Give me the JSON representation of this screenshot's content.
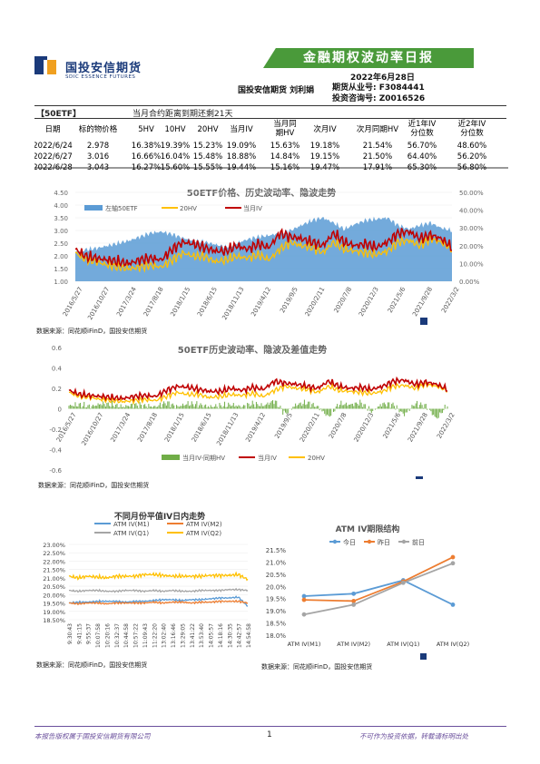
{
  "header": {
    "logo_cn": "国投安信期货",
    "logo_en": "SDIC ESSENCE FUTURES",
    "banner": "金融期权波动率日报",
    "date": "2022年6月28日",
    "author": "国投安信期货 刘利娟",
    "license": "期货从业号: F3084441",
    "consult": "投资咨询号: Z0016526"
  },
  "summary": {
    "tag": "【50ETF】",
    "note": "当月合约距离到期还剩21天",
    "headers": [
      "日期",
      "标的物价格",
      "5HV",
      "10HV",
      "20HV",
      "当月IV",
      "当月同期HV",
      "次月IV",
      "次月同期HV",
      "近1年IV分位数",
      "近2年IV分位数"
    ],
    "rows": [
      [
        "2022/6/24",
        "2.978",
        "16.38%",
        "19.39%",
        "15.23%",
        "19.09%",
        "15.63%",
        "19.18%",
        "21.54%",
        "56.70%",
        "48.60%"
      ],
      [
        "2022/6/27",
        "3.016",
        "16.66%",
        "16.04%",
        "15.48%",
        "18.88%",
        "14.84%",
        "19.15%",
        "21.50%",
        "64.40%",
        "56.20%"
      ],
      [
        "2022/6/28",
        "3.043",
        "16.27%",
        "15.60%",
        "15.55%",
        "19.44%",
        "15.16%",
        "19.47%",
        "17.91%",
        "65.30%",
        "56.80%"
      ]
    ]
  },
  "charts_text": {
    "source1": "数据来源：同花顺iFinD，国投安信期货",
    "source2": "数据来源：同花顺iFinD，国投安信期货",
    "source3": "数据来源：同花顺iFinD，国投安信期货",
    "source4": "数据来源：同花顺iFinD，国投安信期货"
  },
  "footer": {
    "left": "本报告版权属于国投安信期货有限公司",
    "page": "1",
    "right": "不可作为投资依据，转载请标明出处"
  },
  "colors": {
    "blue": "#5b9bd5",
    "red": "#c00000",
    "orange": "#ffc000",
    "green": "#70ad47",
    "navy": "#1a3a7a",
    "grey": "#a5a5a5",
    "coral": "#ed7d31"
  },
  "chart_data": [
    {
      "type": "area",
      "title": "50ETF价格、历史波动率、隐波走势",
      "x_ticks": [
        "2016/5/27",
        "2016/10/27",
        "2017/3/24",
        "2017/8/18",
        "2018/1/15",
        "2018/6/15",
        "2018/11/13",
        "2019/4/12",
        "2019/9/5",
        "2020/2/11",
        "2020/7/8",
        "2020/12/3",
        "2021/5/6",
        "2021/9/28",
        "2022/3/2"
      ],
      "y_left_ticks": [
        "4.50",
        "4.00",
        "3.50",
        "3.00",
        "2.50",
        "2.00",
        "1.50",
        "1.00"
      ],
      "y_right_ticks": [
        "50.00%",
        "40.00%",
        "30.00%",
        "20.00%",
        "10.00%",
        "0.00%"
      ],
      "ylim_left": [
        1.0,
        4.5
      ],
      "ylim_right": [
        0,
        50
      ],
      "series": [
        {
          "name": "左轴50ETF",
          "type": "area",
          "values": [
            2.15,
            2.25,
            2.3,
            2.4,
            2.5,
            2.6,
            2.75,
            2.9,
            2.95,
            2.85,
            2.7,
            2.6,
            2.55,
            2.45,
            2.35,
            2.5,
            2.65,
            2.75,
            2.8,
            2.9,
            3.0,
            3.2,
            3.4,
            3.5,
            3.3,
            3.05,
            3.25,
            3.4,
            3.45,
            3.5,
            3.2,
            3.05,
            3.2,
            3.3,
            3.1,
            3.0
          ]
        },
        {
          "name": "20HV",
          "type": "line",
          "values": [
            16,
            12,
            11,
            9,
            8,
            7,
            8,
            9,
            8,
            12,
            16,
            14,
            14,
            11,
            12,
            14,
            13,
            15,
            12,
            18,
            22,
            20,
            19,
            16,
            22,
            18,
            17,
            16,
            15,
            17,
            22,
            23,
            20,
            24,
            22,
            18
          ]
        },
        {
          "name": "当月IV",
          "type": "line",
          "values": [
            18,
            14,
            13,
            12,
            11,
            10,
            12,
            13,
            12,
            18,
            22,
            21,
            19,
            17,
            17,
            20,
            18,
            21,
            19,
            27,
            25,
            24,
            22,
            20,
            27,
            22,
            20,
            21,
            19,
            22,
            27,
            28,
            24,
            26,
            24,
            19
          ]
        }
      ]
    },
    {
      "type": "line",
      "title": "50ETF历史波动率、隐波及差值走势",
      "x_ticks": [
        "2016/5/27",
        "2016/10/27",
        "2017/3/24",
        "2017/8/18",
        "2018/1/15",
        "2018/6/15",
        "2018/11/13",
        "2019/4/12",
        "2019/9/5",
        "2020/2/11",
        "2020/7/8",
        "2020/12/3",
        "2021/5/6",
        "2021/9/28",
        "2022/3/2"
      ],
      "y_ticks": [
        "0.6",
        "0.4",
        "0.2",
        "0",
        "-0.2",
        "-0.4",
        "-0.6"
      ],
      "ylim": [
        -0.6,
        0.6
      ],
      "series": [
        {
          "name": "当月IV-同期HV",
          "type": "bar",
          "values": [
            0.03,
            0.04,
            0.02,
            0.05,
            0.04,
            0.02,
            0.04,
            0.03,
            0.02,
            0.06,
            0.02,
            0.05,
            0.04,
            0.02,
            0.03,
            0.04,
            0.02,
            0.05,
            0.03,
            0.08,
            -0.05,
            0.04,
            0.06,
            0.02,
            -0.08,
            0.05,
            0.04,
            0.06,
            -0.03,
            0.05,
            0.04,
            -0.06,
            0.05,
            0.03,
            -0.1,
            0.04
          ]
        },
        {
          "name": "当月IV",
          "type": "line",
          "values": [
            0.18,
            0.14,
            0.13,
            0.12,
            0.11,
            0.1,
            0.12,
            0.13,
            0.12,
            0.18,
            0.22,
            0.21,
            0.19,
            0.17,
            0.17,
            0.2,
            0.18,
            0.21,
            0.19,
            0.27,
            0.25,
            0.24,
            0.22,
            0.2,
            0.27,
            0.22,
            0.2,
            0.21,
            0.19,
            0.22,
            0.27,
            0.28,
            0.24,
            0.26,
            0.24,
            0.19
          ]
        },
        {
          "name": "20HV",
          "type": "line",
          "values": [
            0.16,
            0.12,
            0.11,
            0.09,
            0.08,
            0.07,
            0.08,
            0.09,
            0.08,
            0.12,
            0.16,
            0.14,
            0.14,
            0.11,
            0.12,
            0.14,
            0.13,
            0.15,
            0.12,
            0.18,
            0.22,
            0.2,
            0.19,
            0.16,
            0.22,
            0.18,
            0.17,
            0.16,
            0.15,
            0.17,
            0.22,
            0.23,
            0.2,
            0.24,
            0.22,
            0.18
          ]
        }
      ]
    },
    {
      "type": "line",
      "title": "不同月份平值IV日内走势",
      "x_ticks": [
        "9:30:43",
        "9:41:15",
        "9:55:37",
        "10:07:58",
        "10:20:16",
        "10:32:37",
        "10:44:58",
        "10:57:22",
        "11:09:43",
        "11:22:20",
        "13:02:40",
        "13:16:46",
        "13:29:05",
        "13:41:22",
        "13:53:40",
        "14:05:57",
        "14:18:16",
        "14:30:35",
        "14:42:57",
        "14:54:58"
      ],
      "y_ticks": [
        "23.00%",
        "22.50%",
        "22.00%",
        "21.50%",
        "21.00%",
        "20.50%",
        "20.00%",
        "19.50%",
        "19.00%",
        "18.50%"
      ],
      "ylim": [
        18.5,
        23.0
      ],
      "series": [
        {
          "name": "ATM IV(M1)",
          "values": [
            19.5,
            19.55,
            19.55,
            19.6,
            19.6,
            19.6,
            19.55,
            19.6,
            19.6,
            19.65,
            19.7,
            19.7,
            19.65,
            19.7,
            19.7,
            19.75,
            19.8,
            19.8,
            19.85,
            19.3
          ]
        },
        {
          "name": "ATM IV(M2)",
          "values": [
            19.5,
            19.45,
            19.5,
            19.5,
            19.45,
            19.5,
            19.5,
            19.5,
            19.5,
            19.55,
            19.5,
            19.55,
            19.55,
            19.5,
            19.55,
            19.55,
            19.6,
            19.6,
            19.6,
            19.5
          ]
        },
        {
          "name": "ATM IV(Q1)",
          "values": [
            20.25,
            20.2,
            20.25,
            20.25,
            20.2,
            20.2,
            20.25,
            20.25,
            20.2,
            20.25,
            20.2,
            20.25,
            20.2,
            20.2,
            20.25,
            20.25,
            20.25,
            20.3,
            20.3,
            20.25
          ]
        },
        {
          "name": "ATM IV(Q2)",
          "values": [
            21.1,
            21.0,
            21.1,
            21.05,
            21.0,
            21.1,
            21.1,
            21.1,
            21.2,
            21.2,
            21.15,
            21.1,
            21.1,
            21.1,
            21.1,
            21.15,
            21.15,
            21.15,
            21.2,
            20.9
          ]
        }
      ]
    },
    {
      "type": "line",
      "title": "ATM IV期限结构",
      "categories": [
        "ATM IV(M1)",
        "ATM IV(M2)",
        "ATM IV(Q1)",
        "ATM IV(Q2)"
      ],
      "y_ticks": [
        "21.5%",
        "21.0%",
        "20.5%",
        "20.0%",
        "19.5%",
        "19.0%",
        "18.5%",
        "18.0%"
      ],
      "ylim": [
        18.0,
        21.5
      ],
      "legend": "top",
      "series": [
        {
          "name": "今日",
          "values": [
            19.6,
            19.7,
            20.25,
            19.25
          ]
        },
        {
          "name": "昨日",
          "values": [
            19.45,
            19.4,
            20.2,
            21.2
          ]
        },
        {
          "name": "前日",
          "values": [
            18.85,
            19.25,
            20.15,
            20.95
          ]
        }
      ]
    }
  ]
}
